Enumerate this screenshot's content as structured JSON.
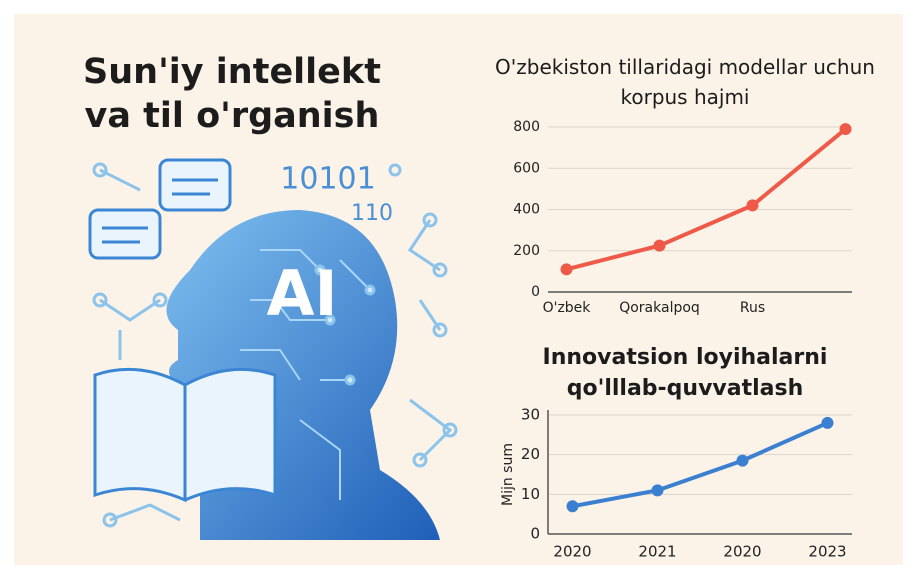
{
  "title": "Sun'iy intellekt va til o'rganish",
  "illustration": {
    "texts": [
      "10101",
      "110",
      "AI"
    ]
  },
  "chart_data": [
    {
      "type": "line",
      "title": "O'zbekiston tillaridagi modellar uchun korpus hajmi",
      "categories": [
        "O'zbek",
        "Qorakalpoq",
        "Rus",
        null
      ],
      "series": [
        {
          "name": null,
          "color": "#ef5a48",
          "values": [
            110,
            225,
            420,
            790
          ]
        }
      ],
      "ylim": [
        0,
        800
      ],
      "yticks": [
        0,
        200,
        400,
        600,
        800
      ],
      "grid": true
    },
    {
      "type": "line",
      "title": "Innovatsion loyihalarni qo'lllab-quvvatlash",
      "ylabel": "Mijn sum",
      "categories": [
        "2020",
        "2021",
        "2020",
        "2023"
      ],
      "series": [
        {
          "name": null,
          "color": "#3b7fd0",
          "values": [
            7,
            11,
            18.5,
            28
          ]
        }
      ],
      "ylim": [
        0,
        30
      ],
      "yticks": [
        0,
        10,
        20,
        30
      ],
      "grid": true
    }
  ]
}
